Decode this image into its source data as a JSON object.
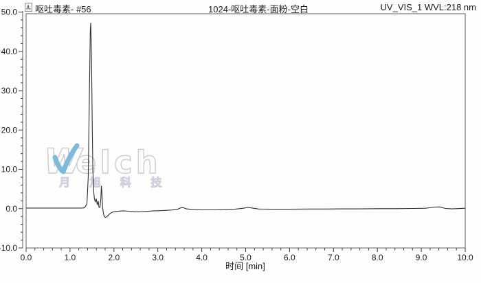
{
  "header": {
    "left": "呕吐毒素- #56",
    "center": "1024-呕吐毒素-面粉-空白",
    "right": "UV_VIS_1 WVL:218 nm",
    "left_icon": "channel-icon"
  },
  "watermark": {
    "brand_w": "W",
    "brand_rest": "elch",
    "subtitle": "月 旭 科 技",
    "swoosh_color": "#7db9da",
    "outline_color": "#cbcbd4",
    "subtitle_color": "#d2cfe0"
  },
  "chart_data": {
    "type": "line",
    "title": "1024-呕吐毒素-面粉-空白",
    "xlabel": "时间 [min]",
    "ylabel": "",
    "xlim": [
      0,
      10
    ],
    "ylim": [
      -10,
      50
    ],
    "grid": false,
    "legend": "none",
    "line_color": "#2e2e2e",
    "frame_color": "#5f5f5f",
    "tick_color": "#3a3a3a",
    "x_ticks": {
      "values": [
        0,
        1,
        2,
        3,
        4,
        5,
        6,
        7,
        8,
        9,
        10
      ],
      "labels": [
        "0.0",
        "1.0",
        "2.0",
        "3.0",
        "4.0",
        "5.0",
        "6.0",
        "7.0",
        "8.0",
        "9.0",
        "10.0"
      ],
      "minor_step": 0.2
    },
    "y_ticks": {
      "values": [
        -10,
        0,
        10,
        20,
        30,
        40,
        50
      ],
      "labels": [
        "-10.0",
        "0.0",
        "10.0",
        "20.0",
        "30.0",
        "40.0",
        "50.0"
      ],
      "minor_step": 2
    },
    "features": [
      {
        "t": 1.47,
        "v": 47.2,
        "desc": "major peak"
      },
      {
        "t": 1.72,
        "v": 5.7,
        "desc": "minor peak"
      },
      {
        "t": 1.8,
        "v": -2.25,
        "desc": "negative dip"
      },
      {
        "t": 3.55,
        "v": 0.25,
        "desc": "small bump"
      },
      {
        "t": 5.05,
        "v": 0.35,
        "desc": "small bump"
      },
      {
        "t": 9.4,
        "v": 0.45,
        "desc": "small bump"
      }
    ],
    "series": [
      {
        "name": "UV_VIS_1",
        "points": [
          [
            0,
            0.15
          ],
          [
            0.5,
            0.15
          ],
          [
            1.0,
            0.15
          ],
          [
            1.25,
            0.15
          ],
          [
            1.33,
            0.2
          ],
          [
            1.385,
            1.2
          ],
          [
            1.415,
            8
          ],
          [
            1.44,
            28
          ],
          [
            1.462,
            45.5
          ],
          [
            1.473,
            47.2
          ],
          [
            1.49,
            38
          ],
          [
            1.505,
            22
          ],
          [
            1.52,
            10
          ],
          [
            1.54,
            4.2
          ],
          [
            1.555,
            2.6
          ],
          [
            1.575,
            1.7
          ],
          [
            1.598,
            2.5
          ],
          [
            1.62,
            1.0
          ],
          [
            1.641,
            1.9
          ],
          [
            1.66,
            0.3
          ],
          [
            1.682,
            0.3
          ],
          [
            1.702,
            2.6
          ],
          [
            1.714,
            5.7
          ],
          [
            1.724,
            4.4
          ],
          [
            1.74,
            0.5
          ],
          [
            1.765,
            -1.5
          ],
          [
            1.8,
            -2.25
          ],
          [
            1.845,
            -2.0
          ],
          [
            1.9,
            -1.35
          ],
          [
            1.96,
            -0.9
          ],
          [
            2.05,
            -0.7
          ],
          [
            2.2,
            -0.55
          ],
          [
            2.35,
            -0.65
          ],
          [
            2.5,
            -0.8
          ],
          [
            2.65,
            -0.75
          ],
          [
            2.85,
            -0.6
          ],
          [
            3.1,
            -0.5
          ],
          [
            3.3,
            -0.35
          ],
          [
            3.45,
            -0.15
          ],
          [
            3.52,
            0.2
          ],
          [
            3.58,
            0.25
          ],
          [
            3.65,
            -0.05
          ],
          [
            3.8,
            -0.2
          ],
          [
            4.0,
            -0.3
          ],
          [
            4.25,
            -0.3
          ],
          [
            4.5,
            -0.25
          ],
          [
            4.75,
            -0.15
          ],
          [
            4.95,
            0.1
          ],
          [
            5.05,
            0.35
          ],
          [
            5.15,
            0.15
          ],
          [
            5.3,
            -0.1
          ],
          [
            5.6,
            -0.15
          ],
          [
            6.0,
            -0.15
          ],
          [
            6.4,
            -0.1
          ],
          [
            6.8,
            -0.1
          ],
          [
            7.2,
            -0.05
          ],
          [
            7.6,
            -0.05
          ],
          [
            8.0,
            0.0
          ],
          [
            8.4,
            0.0
          ],
          [
            8.8,
            0.05
          ],
          [
            9.1,
            0.1
          ],
          [
            9.3,
            0.4
          ],
          [
            9.42,
            0.45
          ],
          [
            9.55,
            0.05
          ],
          [
            9.7,
            -0.05
          ],
          [
            10.0,
            0.1
          ]
        ]
      }
    ]
  }
}
